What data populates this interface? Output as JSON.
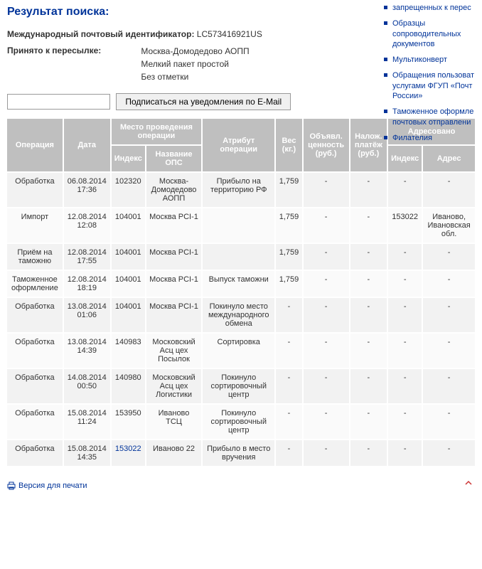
{
  "header": {
    "result_title": "Результат поиска:",
    "id_label": "Международный почтовый идентификатор:",
    "id_value": "LC573416921US",
    "accept_label": "Принято к пересылке:",
    "accept_line1": "Москва-Домодедово АОПП",
    "accept_line2": "Мелкий пакет простой",
    "accept_line3": "Без отметки",
    "subscribe_btn": "Подписаться на уведомления по E-Mail"
  },
  "sidebar": {
    "items": [
      "запрещенных к перес",
      "Образцы сопроводительных документов",
      "Мультиконверт",
      "Обращения пользоват услугами ФГУП «Почт России»",
      "Таможенное оформле почтовых отправлени",
      "Филателия"
    ]
  },
  "table": {
    "head": {
      "op": "Операция",
      "date": "Дата",
      "place": "Место проведения операции",
      "idx": "Индекс",
      "ops": "Название ОПС",
      "attr": "Атрибут операции",
      "weight": "Вес (кг.)",
      "declared": "Объявл. ценность (руб.)",
      "cod": "Налож. платёж (руб.)",
      "addr": "Адресовано",
      "addr_idx": "Индекс",
      "addr_name": "Адрес"
    },
    "rows": [
      {
        "op": "Обработка",
        "date": "06.08.2014 17:36",
        "idx": "102320",
        "ops": "Москва-Домодедово АОПП",
        "attr": "Прибыло на территорию РФ",
        "w": "1,759",
        "dv": "-",
        "cod": "-",
        "aidx": "-",
        "adr": "-"
      },
      {
        "op": "Импорт",
        "date": "12.08.2014 12:08",
        "idx": "104001",
        "ops": "Москва PCI-1",
        "attr": "",
        "w": "1,759",
        "dv": "-",
        "cod": "-",
        "aidx": "153022",
        "adr": "Иваново, Ивановская обл."
      },
      {
        "op": "Приём на таможню",
        "date": "12.08.2014 17:55",
        "idx": "104001",
        "ops": "Москва PCI-1",
        "attr": "",
        "w": "1,759",
        "dv": "-",
        "cod": "-",
        "aidx": "-",
        "adr": "-"
      },
      {
        "op": "Таможенное оформление",
        "date": "12.08.2014 18:19",
        "idx": "104001",
        "ops": "Москва PCI-1",
        "attr": "Выпуск таможни",
        "w": "1,759",
        "dv": "-",
        "cod": "-",
        "aidx": "-",
        "adr": "-"
      },
      {
        "op": "Обработка",
        "date": "13.08.2014 01:06",
        "idx": "104001",
        "ops": "Москва PCI-1",
        "attr": "Покинуло место международного обмена",
        "w": "-",
        "dv": "-",
        "cod": "-",
        "aidx": "-",
        "adr": "-"
      },
      {
        "op": "Обработка",
        "date": "13.08.2014 14:39",
        "idx": "140983",
        "ops": "Московский Асц цех Посылок",
        "attr": "Сортировка",
        "w": "-",
        "dv": "-",
        "cod": "-",
        "aidx": "-",
        "adr": "-"
      },
      {
        "op": "Обработка",
        "date": "14.08.2014 00:50",
        "idx": "140980",
        "ops": "Московский Асц цех Логистики",
        "attr": "Покинуло сортировочный центр",
        "w": "-",
        "dv": "-",
        "cod": "-",
        "aidx": "-",
        "adr": "-"
      },
      {
        "op": "Обработка",
        "date": "15.08.2014 11:24",
        "idx": "153950",
        "ops": "Иваново ТСЦ",
        "attr": "Покинуло сортировочный центр",
        "w": "-",
        "dv": "-",
        "cod": "-",
        "aidx": "-",
        "adr": "-"
      },
      {
        "op": "Обработка",
        "date": "15.08.2014 14:35",
        "idx": "153022",
        "idx_link": true,
        "ops": "Иваново 22",
        "attr": "Прибыло в место вручения",
        "w": "-",
        "dv": "-",
        "cod": "-",
        "aidx": "-",
        "adr": "-"
      }
    ]
  },
  "footer": {
    "print": "Версия для печати",
    "top": "^"
  }
}
